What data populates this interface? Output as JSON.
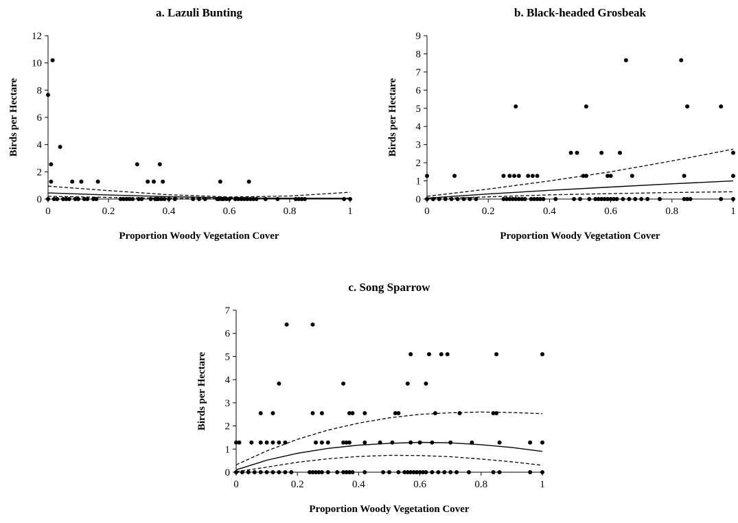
{
  "chart_data": [
    {
      "type": "scatter",
      "title": "a. Lazuli Bunting",
      "xlabel": "Proportion Woody Vegetation Cover",
      "ylabel": "Birds per Hectare",
      "xlim": [
        0,
        1
      ],
      "ylim": [
        0,
        12
      ],
      "xticks": [
        0,
        0.2,
        0.4,
        0.6,
        0.8,
        1
      ],
      "xtick_labels": [
        "0",
        "0.2",
        "0.4",
        "0.6",
        "0.8",
        "1"
      ],
      "yticks": [
        0,
        2,
        4,
        6,
        8,
        10,
        12
      ],
      "ytick_labels": [
        "0",
        "2",
        "4",
        "6",
        "8",
        "10",
        "12"
      ],
      "grid": false,
      "points": [
        [
          0.0,
          7.65
        ],
        [
          0.015,
          10.2
        ],
        [
          0.01,
          2.55
        ],
        [
          0.01,
          1.28
        ],
        [
          0.04,
          3.83
        ],
        [
          0.08,
          1.28
        ],
        [
          0.11,
          1.28
        ],
        [
          0.165,
          1.28
        ],
        [
          0.295,
          2.55
        ],
        [
          0.33,
          1.28
        ],
        [
          0.35,
          1.28
        ],
        [
          0.37,
          2.55
        ],
        [
          0.38,
          1.28
        ],
        [
          0.57,
          1.28
        ],
        [
          0.665,
          1.28
        ],
        [
          0.0,
          0
        ],
        [
          0.02,
          0
        ],
        [
          0.03,
          0
        ],
        [
          0.05,
          0
        ],
        [
          0.06,
          0
        ],
        [
          0.07,
          0
        ],
        [
          0.09,
          0
        ],
        [
          0.1,
          0
        ],
        [
          0.12,
          0
        ],
        [
          0.13,
          0
        ],
        [
          0.15,
          0
        ],
        [
          0.16,
          0
        ],
        [
          0.24,
          0
        ],
        [
          0.25,
          0
        ],
        [
          0.26,
          0
        ],
        [
          0.27,
          0
        ],
        [
          0.28,
          0
        ],
        [
          0.3,
          0
        ],
        [
          0.31,
          0
        ],
        [
          0.34,
          0
        ],
        [
          0.355,
          0
        ],
        [
          0.36,
          0
        ],
        [
          0.365,
          0
        ],
        [
          0.375,
          0
        ],
        [
          0.385,
          0
        ],
        [
          0.4,
          0
        ],
        [
          0.42,
          0
        ],
        [
          0.48,
          0
        ],
        [
          0.5,
          0
        ],
        [
          0.52,
          0
        ],
        [
          0.56,
          0
        ],
        [
          0.565,
          0
        ],
        [
          0.575,
          0
        ],
        [
          0.58,
          0
        ],
        [
          0.59,
          0
        ],
        [
          0.6,
          0
        ],
        [
          0.62,
          0
        ],
        [
          0.63,
          0
        ],
        [
          0.64,
          0
        ],
        [
          0.65,
          0
        ],
        [
          0.66,
          0
        ],
        [
          0.67,
          0
        ],
        [
          0.68,
          0
        ],
        [
          0.69,
          0
        ],
        [
          0.72,
          0
        ],
        [
          0.76,
          0
        ],
        [
          0.82,
          0
        ],
        [
          0.83,
          0
        ],
        [
          0.84,
          0
        ],
        [
          0.85,
          0
        ],
        [
          0.98,
          0
        ],
        [
          1.0,
          0
        ]
      ],
      "fit": [
        [
          0,
          0.45
        ],
        [
          0.2,
          0.3
        ],
        [
          0.4,
          0.17
        ],
        [
          0.6,
          0.09
        ],
        [
          0.8,
          0.06
        ],
        [
          1.0,
          0.05
        ]
      ],
      "ci_upper": [
        [
          0,
          0.95
        ],
        [
          0.2,
          0.62
        ],
        [
          0.4,
          0.32
        ],
        [
          0.6,
          0.15
        ],
        [
          0.8,
          0.22
        ],
        [
          1.0,
          0.5
        ]
      ],
      "ci_lower": [
        [
          0,
          0.2
        ],
        [
          0.2,
          0.12
        ],
        [
          0.4,
          0.05
        ],
        [
          0.6,
          0.02
        ],
        [
          0.8,
          0.01
        ],
        [
          1.0,
          0.01
        ]
      ]
    },
    {
      "type": "scatter",
      "title": "b. Black-headed Grosbeak",
      "xlabel": "Proportion Woody Vegetation Cover",
      "ylabel": "Birds per Hectare",
      "xlim": [
        0,
        1
      ],
      "ylim": [
        0,
        9
      ],
      "xticks": [
        0,
        0.2,
        0.4,
        0.6,
        0.8,
        1
      ],
      "xtick_labels": [
        "0",
        "0.2",
        "0.4",
        "0.6",
        "0.8",
        "1"
      ],
      "yticks": [
        0,
        1,
        2,
        3,
        4,
        5,
        6,
        7,
        8,
        9
      ],
      "ytick_labels": [
        "0",
        "1",
        "2",
        "3",
        "4",
        "5",
        "6",
        "7",
        "8",
        "9"
      ],
      "grid": false,
      "points": [
        [
          0.0,
          1.28
        ],
        [
          0.09,
          1.28
        ],
        [
          0.25,
          1.28
        ],
        [
          0.27,
          1.28
        ],
        [
          0.285,
          1.28
        ],
        [
          0.3,
          1.28
        ],
        [
          0.33,
          1.28
        ],
        [
          0.345,
          1.28
        ],
        [
          0.36,
          1.28
        ],
        [
          0.29,
          5.1
        ],
        [
          0.47,
          2.55
        ],
        [
          0.49,
          2.55
        ],
        [
          0.51,
          1.28
        ],
        [
          0.52,
          1.28
        ],
        [
          0.52,
          5.1
        ],
        [
          0.57,
          2.55
        ],
        [
          0.59,
          1.28
        ],
        [
          0.6,
          1.28
        ],
        [
          0.63,
          2.55
        ],
        [
          0.65,
          7.65
        ],
        [
          0.67,
          1.28
        ],
        [
          0.83,
          7.65
        ],
        [
          0.85,
          5.1
        ],
        [
          0.84,
          1.28
        ],
        [
          0.96,
          5.1
        ],
        [
          1.0,
          2.55
        ],
        [
          1.0,
          1.28
        ],
        [
          0.0,
          0
        ],
        [
          0.02,
          0
        ],
        [
          0.04,
          0
        ],
        [
          0.06,
          0
        ],
        [
          0.08,
          0
        ],
        [
          0.1,
          0
        ],
        [
          0.12,
          0
        ],
        [
          0.14,
          0
        ],
        [
          0.16,
          0
        ],
        [
          0.25,
          0
        ],
        [
          0.26,
          0
        ],
        [
          0.27,
          0
        ],
        [
          0.28,
          0
        ],
        [
          0.29,
          0
        ],
        [
          0.3,
          0
        ],
        [
          0.31,
          0
        ],
        [
          0.32,
          0
        ],
        [
          0.34,
          0
        ],
        [
          0.35,
          0
        ],
        [
          0.36,
          0
        ],
        [
          0.37,
          0
        ],
        [
          0.38,
          0
        ],
        [
          0.42,
          0
        ],
        [
          0.48,
          0
        ],
        [
          0.5,
          0
        ],
        [
          0.53,
          0
        ],
        [
          0.55,
          0
        ],
        [
          0.56,
          0
        ],
        [
          0.57,
          0
        ],
        [
          0.58,
          0
        ],
        [
          0.59,
          0
        ],
        [
          0.6,
          0
        ],
        [
          0.61,
          0
        ],
        [
          0.62,
          0
        ],
        [
          0.64,
          0
        ],
        [
          0.66,
          0
        ],
        [
          0.68,
          0
        ],
        [
          0.7,
          0
        ],
        [
          0.72,
          0
        ],
        [
          0.76,
          0
        ],
        [
          0.84,
          0
        ],
        [
          0.85,
          0
        ],
        [
          0.86,
          0
        ],
        [
          0.96,
          0
        ],
        [
          1.0,
          0
        ]
      ],
      "fit": [
        [
          0,
          0.05
        ],
        [
          0.2,
          0.28
        ],
        [
          0.4,
          0.48
        ],
        [
          0.6,
          0.66
        ],
        [
          0.8,
          0.84
        ],
        [
          1.0,
          1.0
        ]
      ],
      "ci_upper": [
        [
          0,
          0.15
        ],
        [
          0.2,
          0.55
        ],
        [
          0.4,
          1.0
        ],
        [
          0.6,
          1.5
        ],
        [
          0.8,
          2.1
        ],
        [
          1.0,
          2.75
        ]
      ],
      "ci_lower": [
        [
          0,
          0.01
        ],
        [
          0.2,
          0.12
        ],
        [
          0.4,
          0.23
        ],
        [
          0.6,
          0.3
        ],
        [
          0.8,
          0.36
        ],
        [
          1.0,
          0.4
        ]
      ]
    },
    {
      "type": "scatter",
      "title": "c. Song Sparrow",
      "xlabel": "Proportion Woody Vegetation Cover",
      "ylabel": "Birds per Hectare",
      "xlim": [
        0,
        1
      ],
      "ylim": [
        0,
        7
      ],
      "xticks": [
        0,
        0.2,
        0.4,
        0.6,
        0.8,
        1
      ],
      "xtick_labels": [
        "0",
        "0.2",
        "0.4",
        "0.6",
        "0.8",
        "1"
      ],
      "yticks": [
        0,
        1,
        2,
        3,
        4,
        5,
        6,
        7
      ],
      "ytick_labels": [
        "0",
        "1",
        "2",
        "3",
        "4",
        "5",
        "6",
        "7"
      ],
      "grid": false,
      "points": [
        [
          0.0,
          1.28
        ],
        [
          0.01,
          1.28
        ],
        [
          0.05,
          1.28
        ],
        [
          0.08,
          2.55
        ],
        [
          0.08,
          1.28
        ],
        [
          0.1,
          1.28
        ],
        [
          0.12,
          1.28
        ],
        [
          0.12,
          2.55
        ],
        [
          0.14,
          3.83
        ],
        [
          0.14,
          1.28
        ],
        [
          0.16,
          1.28
        ],
        [
          0.165,
          6.38
        ],
        [
          0.25,
          6.38
        ],
        [
          0.25,
          2.55
        ],
        [
          0.26,
          1.28
        ],
        [
          0.28,
          2.55
        ],
        [
          0.28,
          1.28
        ],
        [
          0.3,
          1.28
        ],
        [
          0.35,
          3.83
        ],
        [
          0.35,
          1.28
        ],
        [
          0.36,
          1.28
        ],
        [
          0.37,
          1.28
        ],
        [
          0.37,
          2.55
        ],
        [
          0.38,
          2.55
        ],
        [
          0.42,
          2.55
        ],
        [
          0.42,
          1.28
        ],
        [
          0.47,
          1.28
        ],
        [
          0.51,
          1.28
        ],
        [
          0.52,
          2.55
        ],
        [
          0.53,
          2.55
        ],
        [
          0.56,
          3.83
        ],
        [
          0.57,
          5.1
        ],
        [
          0.57,
          1.28
        ],
        [
          0.6,
          1.28
        ],
        [
          0.62,
          3.83
        ],
        [
          0.63,
          5.1
        ],
        [
          0.64,
          1.28
        ],
        [
          0.65,
          2.55
        ],
        [
          0.67,
          5.1
        ],
        [
          0.69,
          5.1
        ],
        [
          0.7,
          1.28
        ],
        [
          0.73,
          2.55
        ],
        [
          0.77,
          1.28
        ],
        [
          0.84,
          2.55
        ],
        [
          0.85,
          2.55
        ],
        [
          0.85,
          5.1
        ],
        [
          0.86,
          1.28
        ],
        [
          0.96,
          1.28
        ],
        [
          1.0,
          5.1
        ],
        [
          1.0,
          1.28
        ],
        [
          0.0,
          0
        ],
        [
          0.02,
          0
        ],
        [
          0.04,
          0
        ],
        [
          0.06,
          0
        ],
        [
          0.08,
          0
        ],
        [
          0.1,
          0
        ],
        [
          0.12,
          0
        ],
        [
          0.14,
          0
        ],
        [
          0.16,
          0
        ],
        [
          0.18,
          0
        ],
        [
          0.24,
          0
        ],
        [
          0.25,
          0
        ],
        [
          0.26,
          0
        ],
        [
          0.27,
          0
        ],
        [
          0.28,
          0
        ],
        [
          0.3,
          0
        ],
        [
          0.33,
          0
        ],
        [
          0.35,
          0
        ],
        [
          0.36,
          0
        ],
        [
          0.37,
          0
        ],
        [
          0.38,
          0
        ],
        [
          0.42,
          0
        ],
        [
          0.48,
          0
        ],
        [
          0.5,
          0
        ],
        [
          0.53,
          0
        ],
        [
          0.55,
          0
        ],
        [
          0.56,
          0
        ],
        [
          0.57,
          0
        ],
        [
          0.58,
          0
        ],
        [
          0.59,
          0
        ],
        [
          0.6,
          0
        ],
        [
          0.61,
          0
        ],
        [
          0.62,
          0
        ],
        [
          0.64,
          0
        ],
        [
          0.66,
          0
        ],
        [
          0.68,
          0
        ],
        [
          0.7,
          0
        ],
        [
          0.72,
          0
        ],
        [
          0.76,
          0
        ],
        [
          0.84,
          0
        ],
        [
          0.86,
          0
        ],
        [
          0.96,
          0
        ],
        [
          1.0,
          0
        ]
      ],
      "fit": [
        [
          0,
          0.1
        ],
        [
          0.1,
          0.52
        ],
        [
          0.2,
          0.82
        ],
        [
          0.3,
          1.03
        ],
        [
          0.4,
          1.17
        ],
        [
          0.5,
          1.25
        ],
        [
          0.6,
          1.29
        ],
        [
          0.7,
          1.27
        ],
        [
          0.8,
          1.19
        ],
        [
          0.9,
          1.07
        ],
        [
          1.0,
          0.9
        ]
      ],
      "ci_upper": [
        [
          0,
          0.32
        ],
        [
          0.1,
          0.92
        ],
        [
          0.2,
          1.42
        ],
        [
          0.3,
          1.82
        ],
        [
          0.4,
          2.12
        ],
        [
          0.5,
          2.35
        ],
        [
          0.6,
          2.5
        ],
        [
          0.7,
          2.57
        ],
        [
          0.8,
          2.6
        ],
        [
          0.9,
          2.58
        ],
        [
          1.0,
          2.53
        ]
      ],
      "ci_lower": [
        [
          0,
          0.02
        ],
        [
          0.1,
          0.22
        ],
        [
          0.2,
          0.43
        ],
        [
          0.3,
          0.58
        ],
        [
          0.4,
          0.68
        ],
        [
          0.5,
          0.73
        ],
        [
          0.6,
          0.72
        ],
        [
          0.7,
          0.67
        ],
        [
          0.8,
          0.57
        ],
        [
          0.9,
          0.45
        ],
        [
          1.0,
          0.3
        ]
      ]
    }
  ]
}
